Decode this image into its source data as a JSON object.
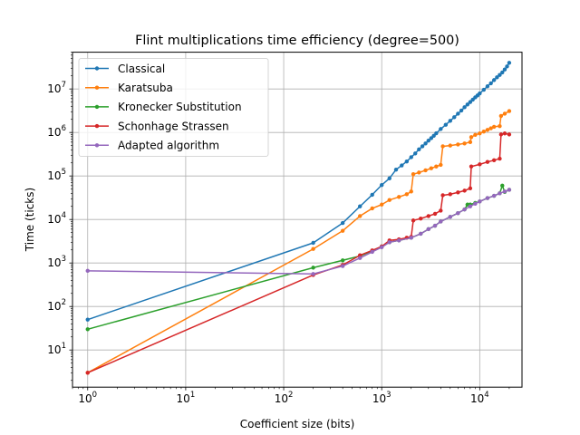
{
  "chart_data": {
    "type": "line",
    "title": "Flint multiplications time efficiency (degree=500)",
    "xlabel": "Coefficient size (bits)",
    "ylabel": "Time (ticks)",
    "xscale": "log",
    "yscale": "log",
    "xlim": [
      0.7,
      27000
    ],
    "ylim": [
      1.4,
      70000000
    ],
    "grid": true,
    "legend_position": "upper left",
    "x_ticks": [
      {
        "base": "10",
        "exp": "0",
        "value": 1
      },
      {
        "base": "10",
        "exp": "1",
        "value": 10
      },
      {
        "base": "10",
        "exp": "2",
        "value": 100
      },
      {
        "base": "10",
        "exp": "3",
        "value": 1000
      },
      {
        "base": "10",
        "exp": "4",
        "value": 10000
      }
    ],
    "y_ticks": [
      {
        "base": "10",
        "exp": "1",
        "value": 10
      },
      {
        "base": "10",
        "exp": "2",
        "value": 100
      },
      {
        "base": "10",
        "exp": "3",
        "value": 1000
      },
      {
        "base": "10",
        "exp": "4",
        "value": 10000
      },
      {
        "base": "10",
        "exp": "5",
        "value": 100000
      },
      {
        "base": "10",
        "exp": "6",
        "value": 1000000
      },
      {
        "base": "10",
        "exp": "7",
        "value": 10000000
      }
    ],
    "series": [
      {
        "name": "Classical",
        "color": "#1f77b4",
        "points": [
          [
            1,
            50
          ],
          [
            200,
            2900
          ],
          [
            400,
            8300
          ],
          [
            600,
            20000
          ],
          [
            800,
            37000
          ],
          [
            1000,
            62000
          ],
          [
            1200,
            88000
          ],
          [
            1400,
            140000
          ],
          [
            1600,
            175000
          ],
          [
            1800,
            215000
          ],
          [
            2000,
            270000
          ],
          [
            2200,
            330000
          ],
          [
            2400,
            410000
          ],
          [
            2600,
            480000
          ],
          [
            2800,
            560000
          ],
          [
            3000,
            650000
          ],
          [
            3200,
            740000
          ],
          [
            3400,
            840000
          ],
          [
            3600,
            960000
          ],
          [
            4000,
            1200000
          ],
          [
            4500,
            1500000
          ],
          [
            5000,
            1850000
          ],
          [
            5500,
            2250000
          ],
          [
            6000,
            2700000
          ],
          [
            6500,
            3200000
          ],
          [
            7000,
            3800000
          ],
          [
            7500,
            4400000
          ],
          [
            8000,
            5000000
          ],
          [
            8500,
            5700000
          ],
          [
            9000,
            6400000
          ],
          [
            9500,
            7100000
          ],
          [
            10000,
            7900000
          ],
          [
            11000,
            9600000
          ],
          [
            12000,
            11500000
          ],
          [
            13000,
            13500000
          ],
          [
            14000,
            16000000
          ],
          [
            15000,
            18500000
          ],
          [
            16000,
            21000000
          ],
          [
            17000,
            24000000
          ],
          [
            18000,
            28000000
          ],
          [
            19000,
            33000000
          ],
          [
            20000,
            40000000
          ]
        ]
      },
      {
        "name": "Karatsuba",
        "color": "#ff7f0e",
        "points": [
          [
            1,
            3
          ],
          [
            200,
            2100
          ],
          [
            400,
            5500
          ],
          [
            600,
            12000
          ],
          [
            800,
            18000
          ],
          [
            1000,
            22000
          ],
          [
            1200,
            28000
          ],
          [
            1500,
            33000
          ],
          [
            1800,
            38000
          ],
          [
            2000,
            44000
          ],
          [
            2100,
            110000
          ],
          [
            2400,
            120000
          ],
          [
            2800,
            135000
          ],
          [
            3200,
            150000
          ],
          [
            3600,
            165000
          ],
          [
            4000,
            180000
          ],
          [
            4200,
            480000
          ],
          [
            5000,
            500000
          ],
          [
            6000,
            530000
          ],
          [
            7000,
            560000
          ],
          [
            8000,
            600000
          ],
          [
            8200,
            780000
          ],
          [
            9000,
            880000
          ],
          [
            10000,
            950000
          ],
          [
            11000,
            1050000
          ],
          [
            12000,
            1150000
          ],
          [
            13000,
            1250000
          ],
          [
            14000,
            1350000
          ],
          [
            16000,
            1400000
          ],
          [
            16500,
            2400000
          ],
          [
            18000,
            2700000
          ],
          [
            20000,
            3100000
          ]
        ]
      },
      {
        "name": "Kronecker Substitution",
        "color": "#2ca02c",
        "points": [
          [
            1,
            30
          ],
          [
            200,
            780
          ],
          [
            400,
            1150
          ],
          [
            600,
            1450
          ],
          [
            800,
            1900
          ],
          [
            1000,
            2400
          ],
          [
            1200,
            3000
          ],
          [
            1500,
            3300
          ],
          [
            2000,
            3800
          ],
          [
            2500,
            4700
          ],
          [
            3000,
            6000
          ],
          [
            3500,
            7200
          ],
          [
            4000,
            9000
          ],
          [
            5000,
            11500
          ],
          [
            6000,
            14000
          ],
          [
            7000,
            17000
          ],
          [
            7500,
            22000
          ],
          [
            8000,
            22000
          ],
          [
            9000,
            24000
          ],
          [
            10000,
            26000
          ],
          [
            12000,
            31000
          ],
          [
            14000,
            35000
          ],
          [
            16000,
            40000
          ],
          [
            17000,
            60000
          ],
          [
            18000,
            43000
          ],
          [
            20000,
            48000
          ]
        ]
      },
      {
        "name": "Schonhage Strassen",
        "color": "#d62728",
        "points": [
          [
            1,
            3
          ],
          [
            200,
            530
          ],
          [
            400,
            900
          ],
          [
            600,
            1500
          ],
          [
            800,
            1950
          ],
          [
            1000,
            2400
          ],
          [
            1200,
            3300
          ],
          [
            1500,
            3500
          ],
          [
            1800,
            3800
          ],
          [
            2000,
            4000
          ],
          [
            2100,
            9500
          ],
          [
            2500,
            10500
          ],
          [
            3000,
            12000
          ],
          [
            3500,
            13500
          ],
          [
            4000,
            16000
          ],
          [
            4200,
            36000
          ],
          [
            5000,
            38000
          ],
          [
            6000,
            42000
          ],
          [
            7000,
            46000
          ],
          [
            8000,
            52000
          ],
          [
            8200,
            165000
          ],
          [
            10000,
            185000
          ],
          [
            12000,
            210000
          ],
          [
            14000,
            230000
          ],
          [
            16000,
            250000
          ],
          [
            16500,
            900000
          ],
          [
            18000,
            950000
          ],
          [
            20000,
            900000
          ]
        ]
      },
      {
        "name": "Adapted algorithm",
        "color": "#9467bd",
        "points": [
          [
            1,
            660
          ],
          [
            200,
            560
          ],
          [
            400,
            850
          ],
          [
            600,
            1300
          ],
          [
            800,
            1800
          ],
          [
            1000,
            2300
          ],
          [
            1200,
            3000
          ],
          [
            1500,
            3300
          ],
          [
            2000,
            3800
          ],
          [
            2500,
            4700
          ],
          [
            3000,
            6000
          ],
          [
            3500,
            7200
          ],
          [
            4000,
            9000
          ],
          [
            5000,
            11500
          ],
          [
            6000,
            14000
          ],
          [
            7000,
            17000
          ],
          [
            8000,
            20000
          ],
          [
            9000,
            23000
          ],
          [
            10000,
            26000
          ],
          [
            12000,
            31000
          ],
          [
            14000,
            35000
          ],
          [
            16000,
            40000
          ],
          [
            18000,
            44000
          ],
          [
            20000,
            48000
          ]
        ]
      }
    ]
  }
}
